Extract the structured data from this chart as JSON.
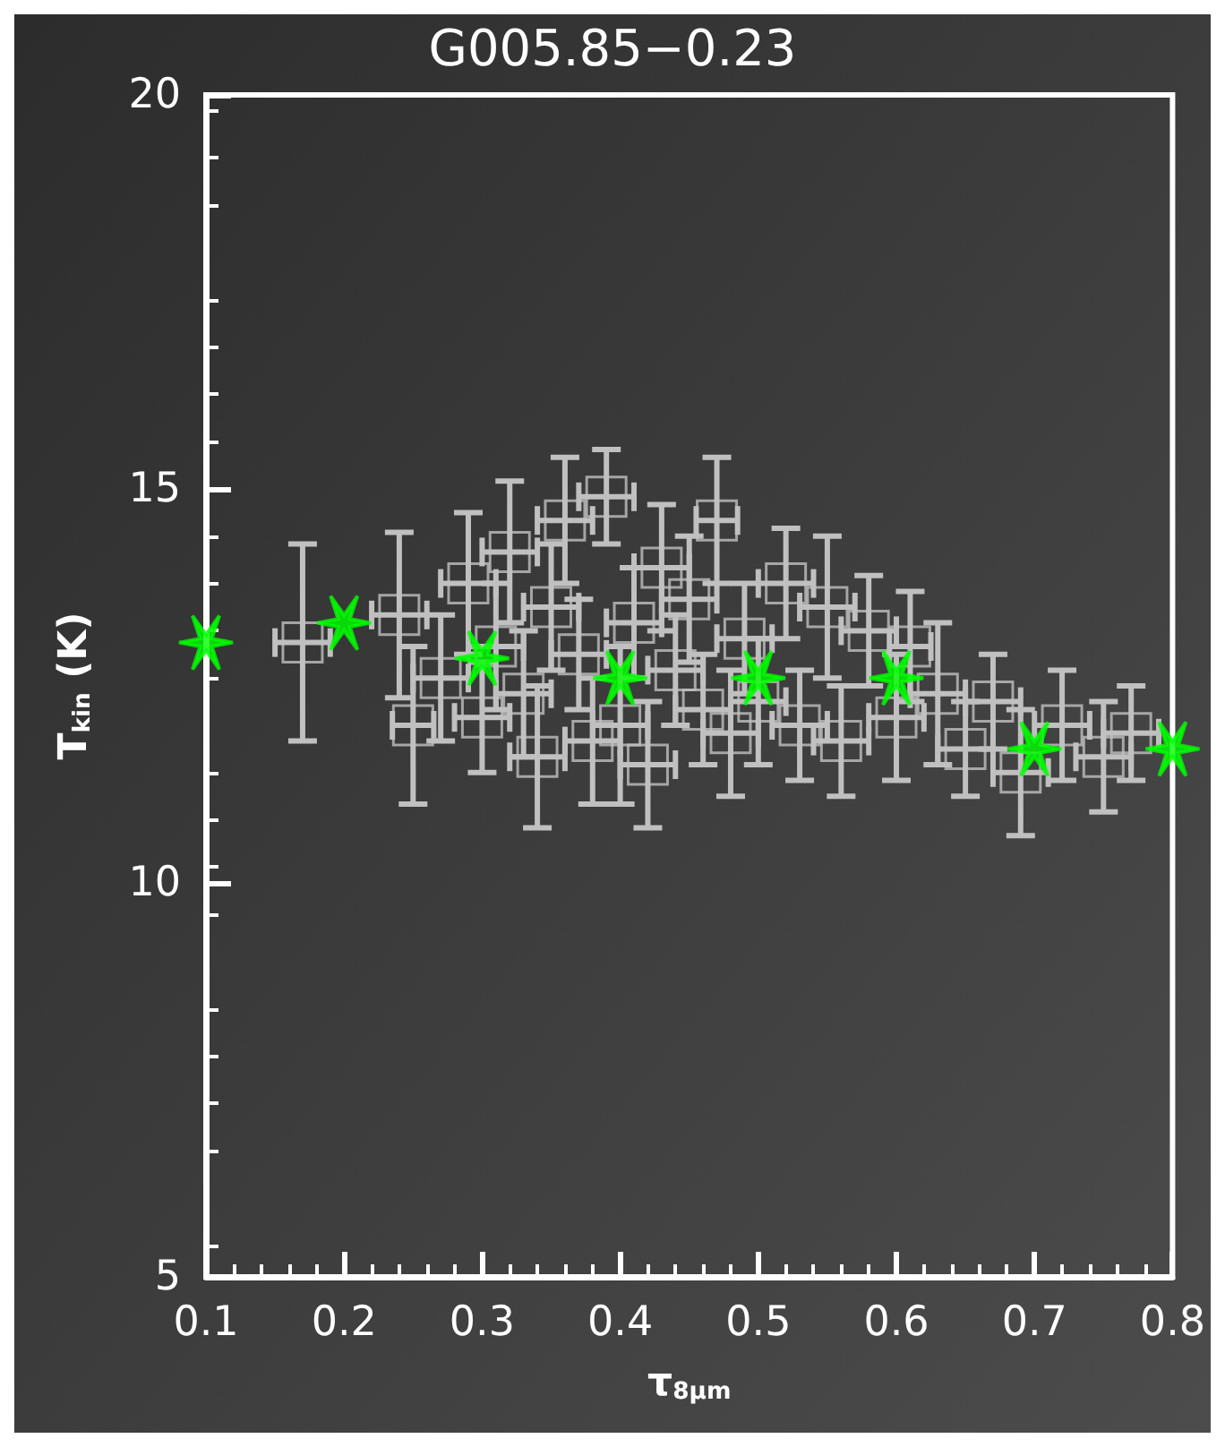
{
  "chart_data": {
    "type": "scatter",
    "title": "G005.85−0.23",
    "xlabel": "τ$_{8μm}$",
    "ylabel": "T$_{kin}$ (K)",
    "xlim": [
      0.1,
      0.8
    ],
    "xticks": [
      0.1,
      0.2,
      0.3,
      0.4,
      0.5,
      0.6,
      0.7,
      0.8
    ],
    "ylim": [
      5,
      20
    ],
    "yticks": [
      5,
      10,
      15,
      20
    ],
    "grid": false,
    "series": [
      {
        "color": "#c0c0c0",
        "marker": "square",
        "x": [
          0.17,
          0.24,
          0.25,
          0.27,
          0.29,
          0.3,
          0.31,
          0.32,
          0.33,
          0.34,
          0.35,
          0.36,
          0.37,
          0.38,
          0.39,
          0.4,
          0.41,
          0.42,
          0.43,
          0.44,
          0.45,
          0.46,
          0.47,
          0.48,
          0.49,
          0.5,
          0.52,
          0.53,
          0.55,
          0.56,
          0.58,
          0.6,
          0.61,
          0.63,
          0.65,
          0.67,
          0.69,
          0.72,
          0.75,
          0.77
        ],
        "values": [
          13.05,
          13.4,
          12.0,
          12.6,
          13.8,
          12.1,
          13.0,
          14.2,
          12.4,
          11.6,
          13.5,
          14.6,
          12.9,
          11.8,
          14.9,
          12.0,
          13.3,
          11.5,
          14.0,
          12.7,
          13.6,
          12.2,
          14.6,
          11.9,
          13.1,
          12.3,
          13.8,
          12.0,
          13.5,
          11.8,
          13.2,
          12.1,
          13.0,
          12.4,
          11.7,
          12.3,
          11.4,
          12.0,
          11.6,
          11.9
        ],
        "errors": [
          1.25,
          1.05,
          1.0,
          0.8,
          0.9,
          0.7,
          0.8,
          0.9,
          0.8,
          0.9,
          0.8,
          0.8,
          0.7,
          0.8,
          0.6,
          1.0,
          0.7,
          0.8,
          0.8,
          0.7,
          0.8,
          0.7,
          0.8,
          0.8,
          0.7,
          0.8,
          0.7,
          0.7,
          0.9,
          0.7,
          0.7,
          0.8,
          0.7,
          0.9,
          0.6,
          0.6,
          0.8,
          0.7,
          0.7,
          0.6
        ],
        "xerrors": [
          0.02,
          0.02,
          0.015,
          0.02,
          0.02,
          0.02,
          0.02,
          0.02,
          0.02,
          0.02,
          0.02,
          0.02,
          0.02,
          0.02,
          0.02,
          0.02,
          0.02,
          0.02,
          0.02,
          0.02,
          0.02,
          0.02,
          0.015,
          0.02,
          0.02,
          0.02,
          0.02,
          0.02,
          0.02,
          0.02,
          0.02,
          0.02,
          0.015,
          0.02,
          0.02,
          0.02,
          0.02,
          0.02,
          0.02,
          0.02
        ]
      },
      {
        "color": "#00ff00",
        "marker": "cross",
        "x": [
          0.1,
          0.2,
          0.3,
          0.4,
          0.5,
          0.6,
          0.7,
          0.8
        ],
        "values": [
          13.05,
          13.3,
          12.85,
          12.6,
          12.6,
          12.6,
          11.7,
          11.7
        ]
      }
    ]
  }
}
